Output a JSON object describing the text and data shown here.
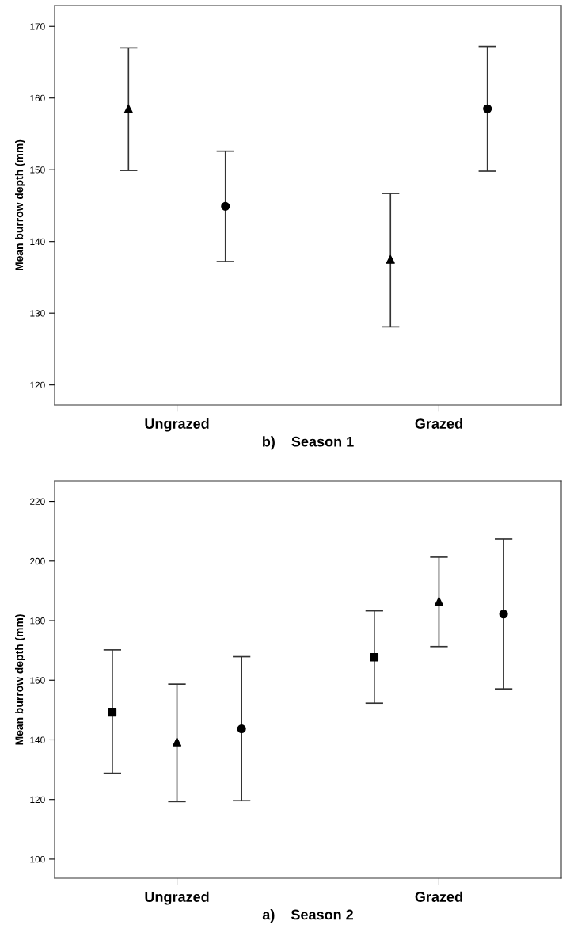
{
  "chart_data": [
    {
      "type": "scatter",
      "title": "b)    Season 1",
      "ylabel": "Mean burrow depth (mm)",
      "categories": [
        "Ungrazed",
        "Grazed"
      ],
      "ylim": [
        117.2,
        172.9
      ],
      "yticks": [
        120,
        130,
        140,
        150,
        160,
        170
      ],
      "series": [
        {
          "color": "#000000",
          "marker": "triangle",
          "values": [
            158.5,
            137.5
          ],
          "errors": [
            [
              149.9,
              167.0
            ],
            [
              128.1,
              146.7
            ]
          ]
        },
        {
          "color": "#000000",
          "marker": "circle",
          "values": [
            144.9,
            158.5
          ],
          "errors": [
            [
              137.2,
              152.6
            ],
            [
              149.8,
              167.2
            ]
          ]
        }
      ]
    },
    {
      "type": "scatter",
      "title": "a)    Season 2",
      "ylabel": "Mean burrow depth (mm)",
      "categories": [
        "Ungrazed",
        "Grazed"
      ],
      "ylim": [
        93.6,
        226.8
      ],
      "yticks": [
        100,
        120,
        140,
        160,
        180,
        200,
        220
      ],
      "series": [
        {
          "color": "#000000",
          "marker": "square",
          "values": [
            149.4,
            167.7
          ],
          "errors": [
            [
              128.8,
              170.2
            ],
            [
              152.3,
              183.3
            ]
          ]
        },
        {
          "color": "#000000",
          "marker": "triangle",
          "values": [
            139.3,
            186.5
          ],
          "errors": [
            [
              119.3,
              158.7
            ],
            [
              171.3,
              201.3
            ]
          ]
        },
        {
          "color": "#000000",
          "marker": "circle",
          "values": [
            143.7,
            182.2
          ],
          "errors": [
            [
              119.6,
              167.9
            ],
            [
              157.1,
              207.4
            ]
          ]
        }
      ]
    }
  ]
}
